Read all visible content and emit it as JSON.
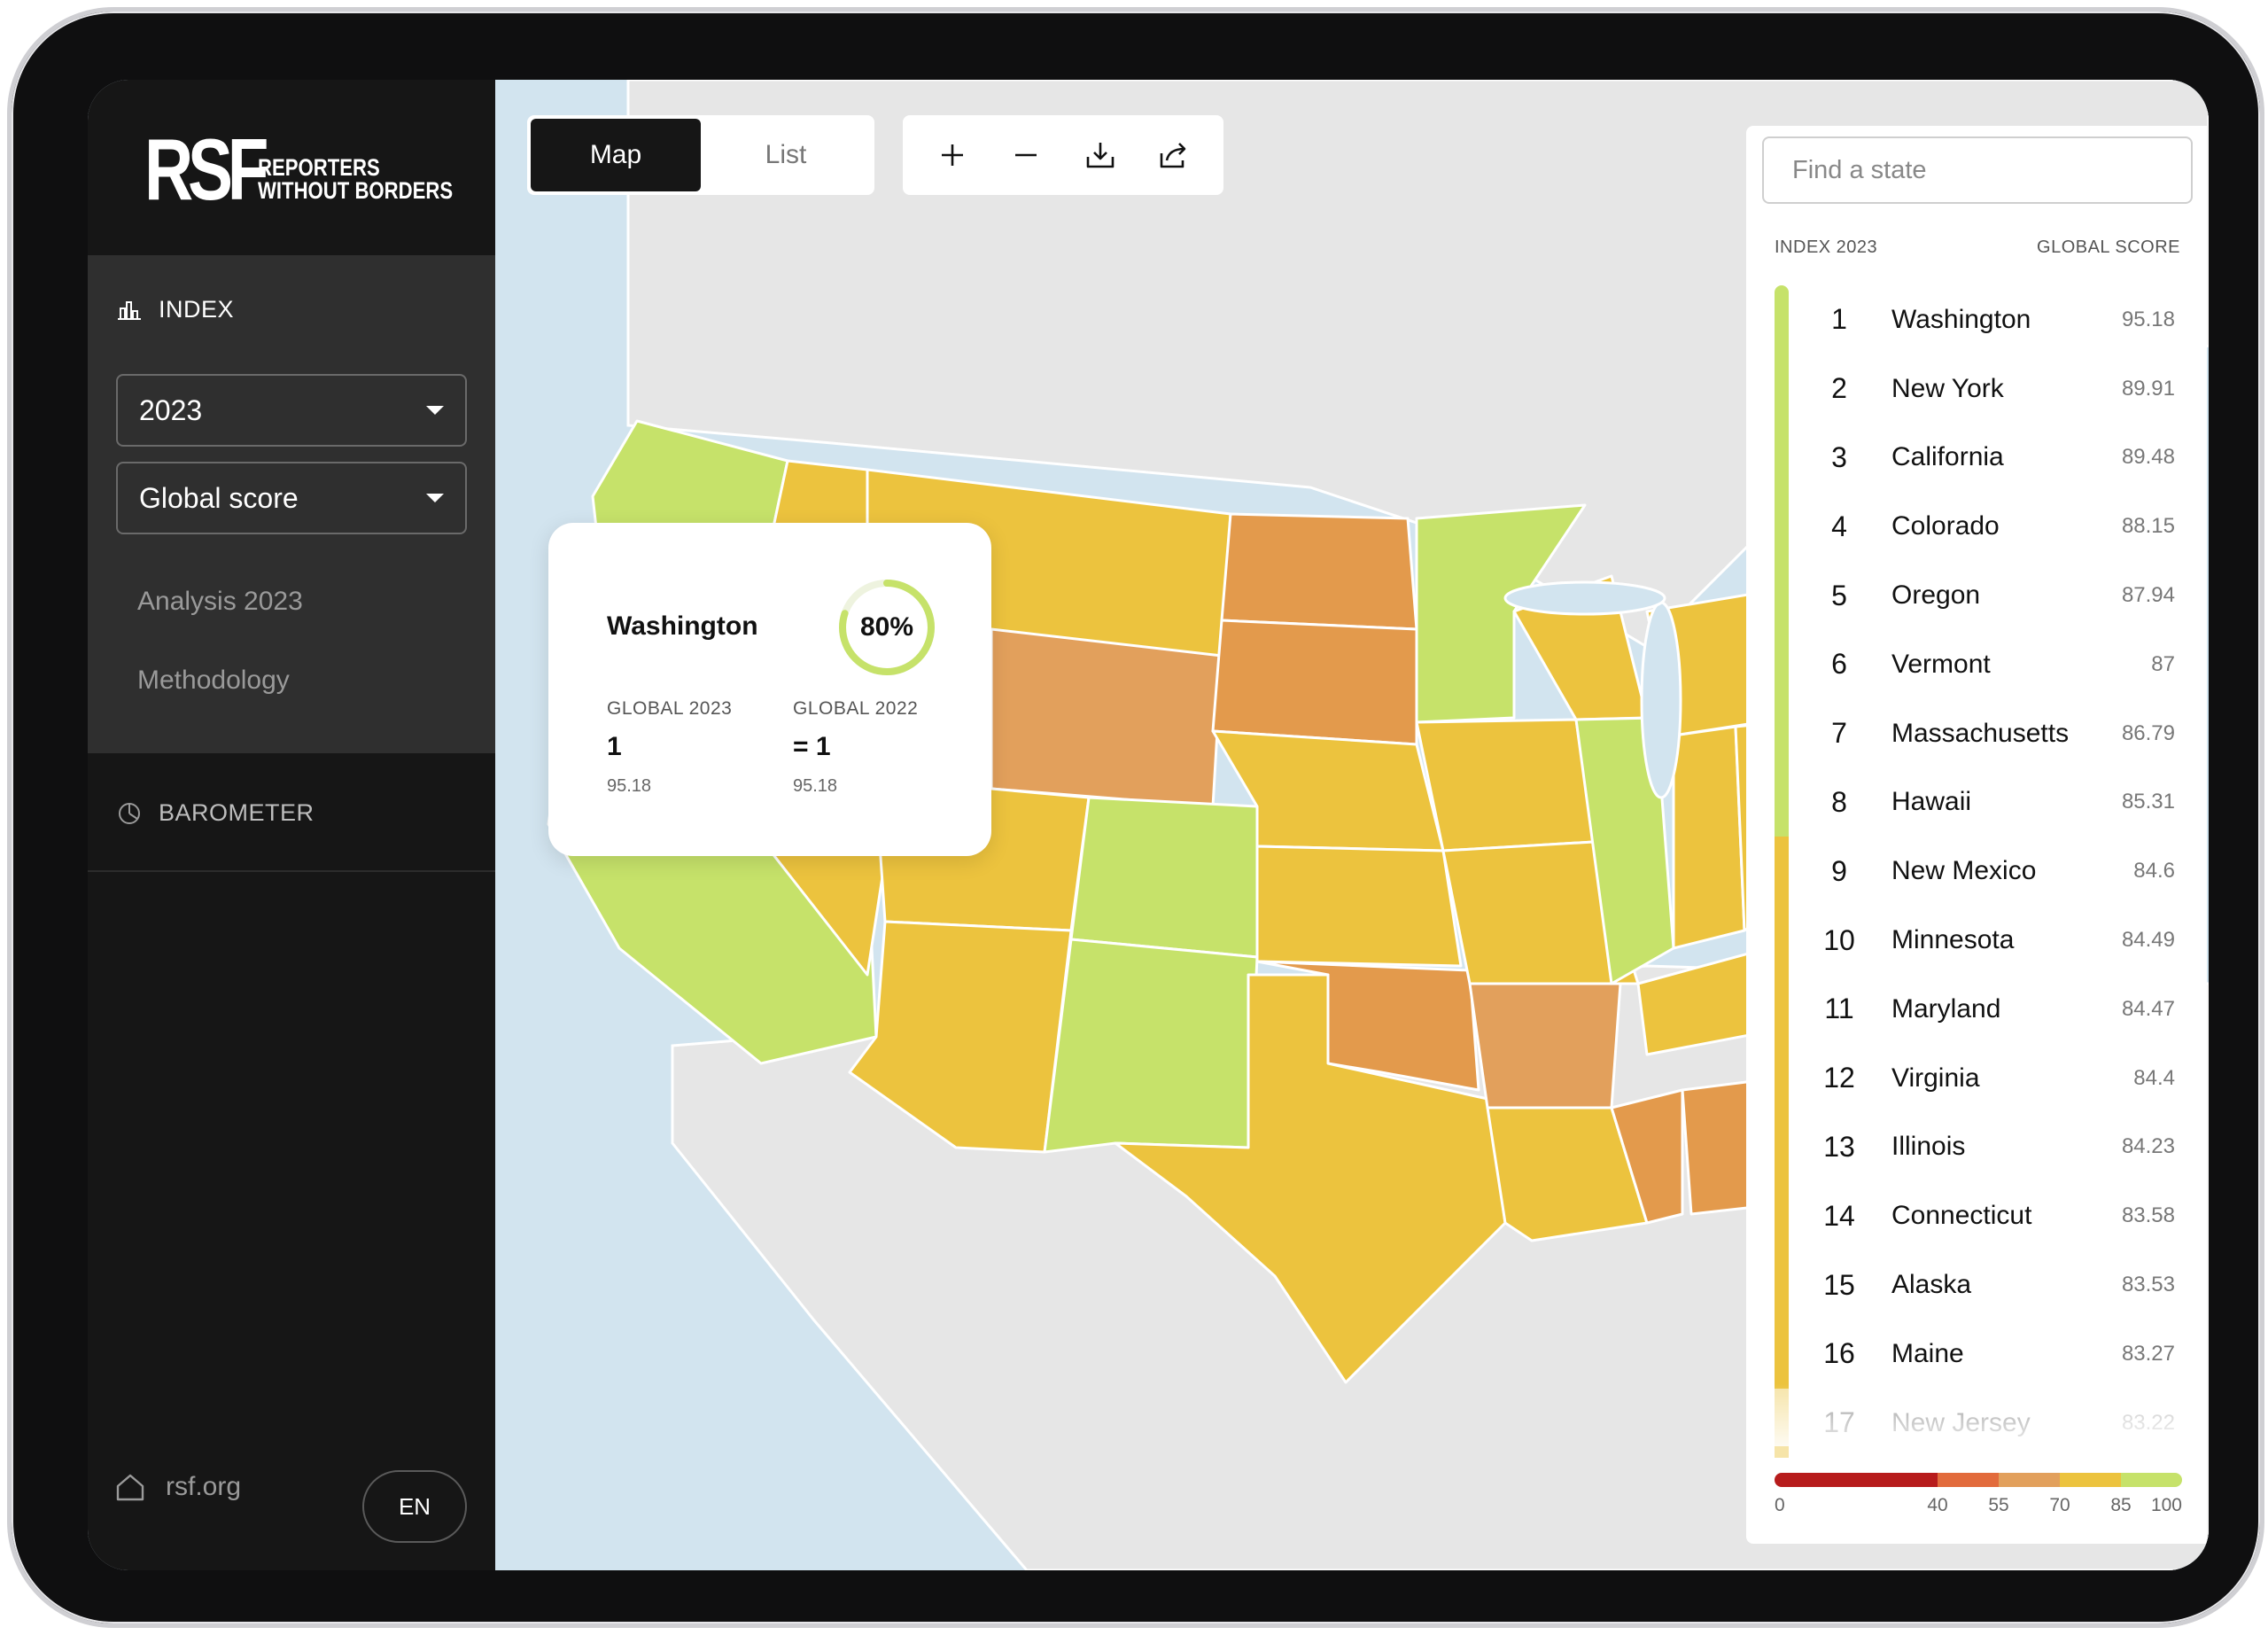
{
  "brand": {
    "logo_letters": "RSF",
    "logo_line1": "REPORTERS",
    "logo_line2": "WITHOUT BORDERS"
  },
  "sidebar": {
    "index_label": "INDEX",
    "year_select": "2023",
    "metric_select": "Global score",
    "links": [
      "Analysis 2023",
      "Methodology"
    ],
    "barometer_label": "BAROMETER",
    "home_link": "rsf.org",
    "language": "EN"
  },
  "toolbar": {
    "tabs": [
      "Map",
      "List"
    ],
    "active_tab": "Map",
    "tools": [
      "zoom-in-icon",
      "zoom-out-icon",
      "download-icon",
      "share-icon"
    ]
  },
  "tooltip": {
    "state": "Washington",
    "percent": "80%",
    "percent_value": 0.8,
    "global_2023_label": "GLOBAL 2023",
    "global_2023_rank": "1",
    "global_2023_score": "95.18",
    "global_2022_label": "GLOBAL 2022",
    "global_2022_rank": "= 1",
    "global_2022_score": "95.18"
  },
  "ranking": {
    "search_placeholder": "Find a state",
    "col_index": "INDEX 2023",
    "col_score": "GLOBAL SCORE",
    "rows": [
      {
        "rank": "1",
        "state": "Washington",
        "score": "95.18"
      },
      {
        "rank": "2",
        "state": "New York",
        "score": "89.91"
      },
      {
        "rank": "3",
        "state": "California",
        "score": "89.48"
      },
      {
        "rank": "4",
        "state": "Colorado",
        "score": "88.15"
      },
      {
        "rank": "5",
        "state": "Oregon",
        "score": "87.94"
      },
      {
        "rank": "6",
        "state": "Vermont",
        "score": "87"
      },
      {
        "rank": "7",
        "state": "Massachusetts",
        "score": "86.79"
      },
      {
        "rank": "8",
        "state": "Hawaii",
        "score": "85.31"
      },
      {
        "rank": "9",
        "state": "New Mexico",
        "score": "84.6"
      },
      {
        "rank": "10",
        "state": "Minnesota",
        "score": "84.49"
      },
      {
        "rank": "11",
        "state": "Maryland",
        "score": "84.47"
      },
      {
        "rank": "12",
        "state": "Virginia",
        "score": "84.4"
      },
      {
        "rank": "13",
        "state": "Illinois",
        "score": "84.23"
      },
      {
        "rank": "14",
        "state": "Connecticut",
        "score": "83.58"
      },
      {
        "rank": "15",
        "state": "Alaska",
        "score": "83.53"
      },
      {
        "rank": "16",
        "state": "Maine",
        "score": "83.27"
      },
      {
        "rank": "17",
        "state": "New Jersey",
        "score": "83.22"
      }
    ]
  },
  "legend": {
    "ticks": [
      "0",
      "40",
      "55",
      "70",
      "85",
      "100"
    ],
    "colors": [
      "#b71c1c",
      "#e26b3c",
      "#e2a05c",
      "#ecc33e",
      "#c6e26a"
    ]
  },
  "colors": {
    "top_band": "#c6e26a",
    "mid_band": "#ecc33e",
    "low_band": "#e39a4c",
    "lower_band": "#e2a05c",
    "sidebar_bg": "#161616"
  }
}
